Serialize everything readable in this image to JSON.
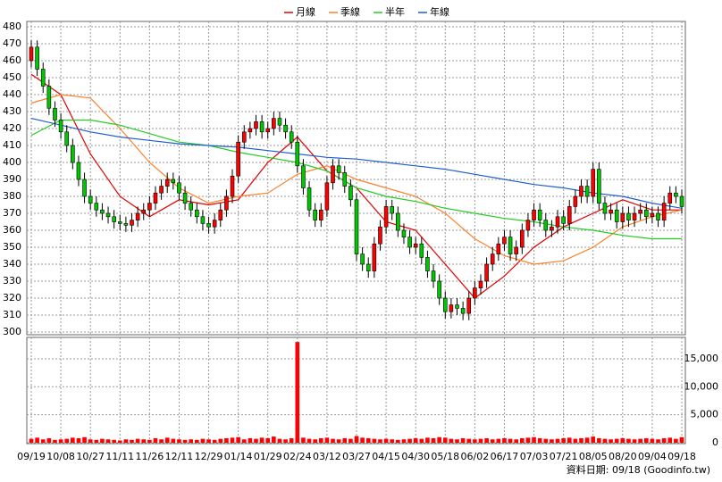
{
  "chart_data": {
    "type": "candlestick",
    "categories": [
      "09/19",
      null,
      null,
      null,
      null,
      "10/08",
      null,
      null,
      null,
      null,
      "10/27",
      null,
      null,
      null,
      null,
      "11/11",
      null,
      null,
      null,
      null,
      "11/26",
      null,
      null,
      null,
      null,
      "12/11",
      null,
      null,
      null,
      null,
      "12/29",
      null,
      null,
      null,
      null,
      "01/14",
      null,
      null,
      null,
      null,
      "01/29",
      null,
      null,
      null,
      null,
      "02/24",
      null,
      null,
      null,
      null,
      "03/12",
      null,
      null,
      null,
      null,
      "03/27",
      null,
      null,
      null,
      null,
      "04/15",
      null,
      null,
      null,
      null,
      "04/30",
      null,
      null,
      null,
      null,
      "05/18",
      null,
      null,
      null,
      null,
      "06/02",
      null,
      null,
      null,
      null,
      "06/17",
      null,
      null,
      null,
      null,
      "07/03",
      null,
      null,
      null,
      null,
      "07/21",
      null,
      null,
      null,
      null,
      "08/05",
      null,
      null,
      null,
      null,
      "08/20",
      null,
      null,
      null,
      null,
      "09/04",
      null,
      null,
      null,
      null,
      "09/18"
    ],
    "open": [
      460,
      468,
      455,
      445,
      432,
      425,
      418,
      410,
      400,
      390,
      380,
      376,
      372,
      370,
      368,
      365,
      364,
      363,
      366,
      370,
      372,
      376,
      382,
      386,
      390,
      388,
      382,
      376,
      372,
      368,
      364,
      362,
      366,
      372,
      380,
      392,
      412,
      418,
      420,
      424,
      418,
      420,
      426,
      422,
      418,
      412,
      398,
      385,
      372,
      366,
      372,
      388,
      398,
      394,
      386,
      378,
      346,
      340,
      336,
      352,
      362,
      374,
      370,
      360,
      356,
      350,
      352,
      344,
      336,
      330,
      320,
      312,
      316,
      314,
      311,
      320,
      326,
      330,
      340,
      346,
      352,
      356,
      346,
      350,
      360,
      366,
      372,
      366,
      360,
      362,
      368,
      364,
      374,
      380,
      386,
      380,
      396,
      376,
      370,
      372,
      365,
      370,
      366,
      370,
      372,
      368,
      370,
      366,
      376,
      382,
      380
    ],
    "high": [
      472,
      472,
      459,
      449,
      436,
      429,
      422,
      414,
      404,
      394,
      384,
      380,
      376,
      374,
      372,
      369,
      368,
      370,
      374,
      376,
      380,
      386,
      390,
      394,
      394,
      392,
      386,
      380,
      376,
      372,
      368,
      370,
      376,
      384,
      396,
      416,
      422,
      424,
      428,
      428,
      424,
      430,
      430,
      426,
      422,
      416,
      402,
      389,
      376,
      376,
      392,
      402,
      402,
      398,
      390,
      382,
      350,
      344,
      356,
      366,
      378,
      378,
      374,
      364,
      360,
      356,
      356,
      348,
      340,
      334,
      324,
      320,
      320,
      318,
      324,
      330,
      334,
      344,
      350,
      356,
      360,
      360,
      354,
      364,
      370,
      376,
      376,
      370,
      366,
      372,
      372,
      378,
      384,
      390,
      390,
      400,
      400,
      380,
      376,
      376,
      374,
      374,
      374,
      376,
      376,
      374,
      374,
      380,
      386,
      386,
      384
    ],
    "low": [
      456,
      451,
      441,
      428,
      421,
      414,
      406,
      396,
      386,
      376,
      372,
      368,
      366,
      364,
      361,
      360,
      359,
      359,
      362,
      366,
      368,
      372,
      378,
      382,
      384,
      378,
      372,
      368,
      364,
      360,
      358,
      358,
      362,
      368,
      376,
      388,
      408,
      414,
      416,
      414,
      414,
      416,
      418,
      414,
      408,
      394,
      381,
      368,
      362,
      362,
      368,
      384,
      390,
      382,
      374,
      342,
      336,
      332,
      332,
      348,
      358,
      366,
      356,
      352,
      346,
      346,
      340,
      332,
      326,
      316,
      308,
      308,
      310,
      307,
      307,
      316,
      322,
      326,
      336,
      342,
      348,
      342,
      342,
      346,
      356,
      362,
      362,
      356,
      356,
      358,
      360,
      360,
      370,
      376,
      376,
      376,
      372,
      366,
      366,
      361,
      361,
      362,
      362,
      366,
      364,
      364,
      362,
      362,
      372,
      376,
      370
    ],
    "close": [
      468,
      455,
      445,
      432,
      425,
      418,
      410,
      400,
      390,
      380,
      376,
      372,
      370,
      368,
      365,
      364,
      363,
      366,
      370,
      372,
      376,
      382,
      386,
      390,
      388,
      382,
      376,
      372,
      368,
      364,
      362,
      366,
      372,
      380,
      392,
      412,
      418,
      420,
      424,
      418,
      420,
      426,
      422,
      418,
      412,
      398,
      385,
      372,
      366,
      372,
      388,
      398,
      394,
      386,
      378,
      346,
      340,
      336,
      352,
      362,
      374,
      370,
      360,
      356,
      350,
      352,
      344,
      336,
      330,
      320,
      312,
      316,
      314,
      311,
      320,
      326,
      330,
      340,
      346,
      352,
      356,
      346,
      350,
      360,
      366,
      372,
      366,
      360,
      362,
      368,
      364,
      374,
      380,
      386,
      380,
      396,
      376,
      370,
      372,
      365,
      370,
      366,
      370,
      372,
      368,
      370,
      366,
      376,
      382,
      380,
      374
    ],
    "up_color": "#ff0000",
    "down_color": "#00c800",
    "ylim": [
      300,
      480
    ],
    "yticks": [
      300,
      310,
      320,
      330,
      340,
      350,
      360,
      370,
      380,
      390,
      400,
      410,
      420,
      430,
      440,
      450,
      460,
      470,
      480
    ],
    "grid": true,
    "moving_averages": [
      {
        "name": "月線",
        "color": "#e00000",
        "x": [
          0,
          5,
          10,
          15,
          20,
          25,
          30,
          35,
          40,
          45,
          50,
          55,
          60,
          65,
          70,
          75,
          80,
          85,
          90,
          95,
          100,
          105,
          110
        ],
        "values": [
          452,
          440,
          405,
          380,
          368,
          378,
          375,
          378,
          400,
          415,
          395,
          385,
          365,
          360,
          340,
          320,
          333,
          350,
          362,
          370,
          378,
          372,
          372
        ]
      },
      {
        "name": "季線",
        "color": "#ff7f27",
        "x": [
          0,
          5,
          10,
          15,
          20,
          25,
          30,
          35,
          40,
          45,
          50,
          55,
          60,
          65,
          70,
          75,
          80,
          85,
          90,
          95,
          100,
          105,
          110
        ],
        "values": [
          435,
          440,
          438,
          420,
          400,
          385,
          376,
          380,
          382,
          393,
          398,
          390,
          385,
          380,
          370,
          355,
          345,
          340,
          342,
          350,
          362,
          368,
          372
        ]
      },
      {
        "name": "半年",
        "color": "#22cc22",
        "x": [
          0,
          5,
          10,
          15,
          20,
          25,
          30,
          35,
          40,
          45,
          50,
          55,
          60,
          65,
          70,
          75,
          80,
          85,
          90,
          95,
          100,
          105,
          110
        ],
        "values": [
          416,
          425,
          425,
          422,
          417,
          412,
          410,
          406,
          403,
          400,
          395,
          385,
          380,
          377,
          373,
          370,
          367,
          365,
          362,
          360,
          357,
          355,
          355
        ]
      },
      {
        "name": "年線",
        "color": "#1f5fd0",
        "x": [
          0,
          5,
          10,
          15,
          20,
          25,
          30,
          35,
          40,
          45,
          50,
          55,
          60,
          65,
          70,
          75,
          80,
          85,
          90,
          95,
          100,
          105,
          110
        ],
        "values": [
          426,
          422,
          418,
          415,
          413,
          411,
          410,
          409,
          407,
          405,
          403,
          402,
          400,
          398,
          396,
          393,
          390,
          387,
          385,
          382,
          380,
          376,
          373
        ]
      }
    ],
    "volume": {
      "color": "#ff0000",
      "values": [
        700,
        900,
        600,
        800,
        500,
        600,
        700,
        900,
        800,
        1000,
        600,
        500,
        700,
        600,
        500,
        400,
        600,
        500,
        700,
        600,
        500,
        800,
        600,
        900,
        700,
        600,
        500,
        600,
        500,
        700,
        600,
        500,
        700,
        800,
        900,
        1000,
        600,
        800,
        700,
        900,
        800,
        1100,
        700,
        600,
        800,
        18000,
        900,
        700,
        600,
        800,
        900,
        700,
        600,
        800,
        700,
        1200,
        900,
        800,
        700,
        600,
        700,
        600,
        500,
        600,
        700,
        800,
        700,
        900,
        800,
        1000,
        900,
        700,
        600,
        800,
        700,
        600,
        700,
        800,
        600,
        700,
        800,
        700,
        600,
        800,
        900,
        1000,
        800,
        700,
        600,
        700,
        800,
        900,
        700,
        800,
        900,
        1100,
        800,
        700,
        600,
        700,
        800,
        700,
        600,
        700,
        800,
        700,
        600,
        800,
        900,
        700,
        1000
      ],
      "ylim": [
        0,
        18500
      ],
      "yticks": [
        0,
        {
          "value": 5000,
          "label": "5,000"
        },
        {
          "value": 10000,
          "label": "10,000"
        },
        {
          "value": 15000,
          "label": "15,000"
        }
      ]
    },
    "footer": "資料日期: 09/18 (Goodinfo.tw)"
  }
}
